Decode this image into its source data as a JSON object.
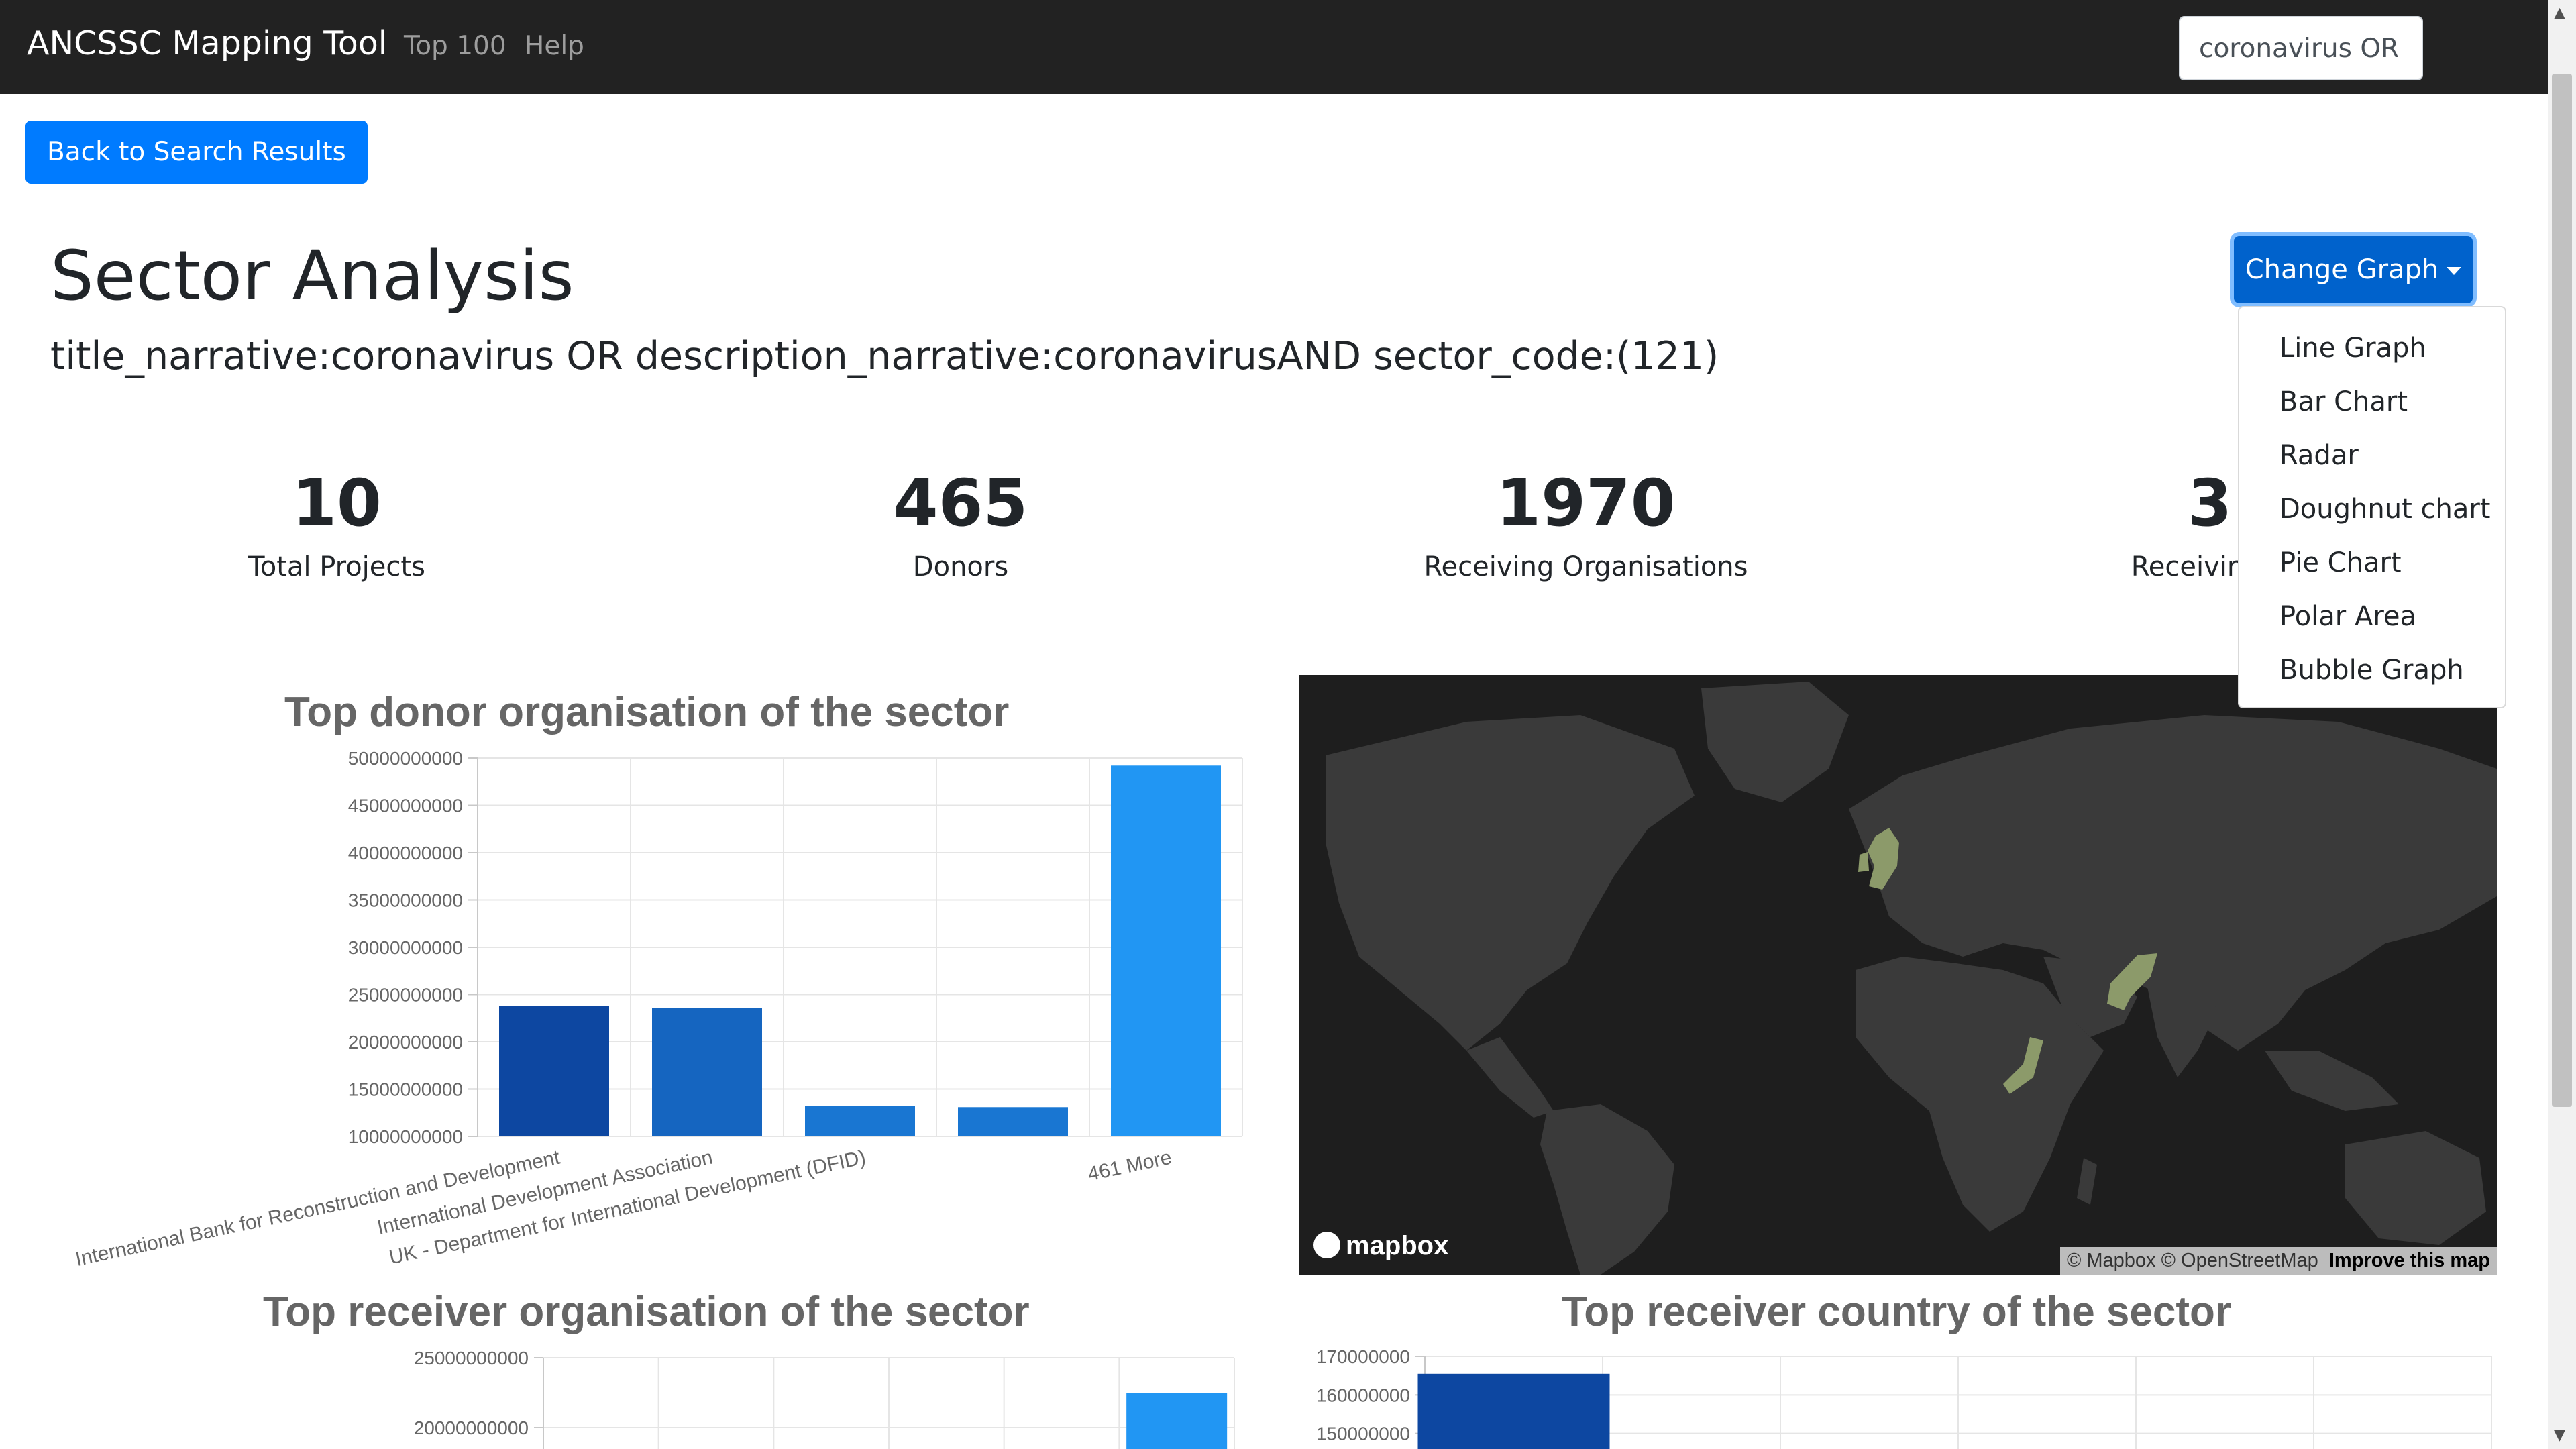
{
  "nav": {
    "brand": "ANCSSC Mapping Tool",
    "links": [
      "Top 100",
      "Help"
    ],
    "search_value": "coronavirus OR descriptic"
  },
  "back_button": "Back to Search Results",
  "page_title": "Sector Analysis",
  "query": "title_narrative:coronavirus OR description_narrative:coronavirusAND sector_code:(121)",
  "change_graph": {
    "label": "Change Graph",
    "options": [
      "Line Graph",
      "Bar Chart",
      "Radar",
      "Doughnut chart",
      "Pie Chart",
      "Polar Area",
      "Bubble Graph"
    ]
  },
  "stats": [
    {
      "value": "10",
      "label": "Total Projects"
    },
    {
      "value": "465",
      "label": "Donors"
    },
    {
      "value": "1970",
      "label": "Receiving Organisations"
    },
    {
      "value": "3",
      "label": "Receiving C"
    }
  ],
  "map": {
    "logo": "mapbox",
    "attribution": "© Mapbox © OpenStreetMap",
    "improve": "Improve this map",
    "land_color": "#3a3a3a",
    "highlight_color": "#8c9a6a"
  },
  "chart_data": [
    {
      "type": "bar",
      "title": "Top donor organisation of the sector",
      "categories": [
        "International Bank for Reconstruction and Development",
        "International Development Association",
        "UK - Department for International Development (DFID)",
        "",
        "461 More"
      ],
      "values": [
        23800000000,
        23600000000,
        13200000000,
        13100000000,
        49200000000
      ],
      "colors": [
        "#0d47a1",
        "#1565c0",
        "#1976d2",
        "#1976d2",
        "#2196f3"
      ],
      "ylim": [
        10000000000,
        50000000000
      ],
      "yticks": [
        "50000000000",
        "45000000000",
        "40000000000",
        "35000000000",
        "30000000000",
        "25000000000",
        "20000000000",
        "15000000000",
        "10000000000"
      ],
      "grid": true
    },
    {
      "type": "bar",
      "title": "Top receiver organisation of the sector",
      "values": [
        22500000000
      ],
      "colors": [
        "#2196f3"
      ],
      "ylim": [
        15000000000,
        25000000000
      ],
      "yticks": [
        "25000000000",
        "20000000000"
      ],
      "grid": true
    },
    {
      "type": "bar",
      "title": "Top receiver country of the sector",
      "values": [
        165500000
      ],
      "colors": [
        "#0d47a1"
      ],
      "ylim": [
        140000000,
        170000000
      ],
      "yticks": [
        "170000000",
        "160000000",
        "150000000"
      ],
      "grid": true
    }
  ]
}
